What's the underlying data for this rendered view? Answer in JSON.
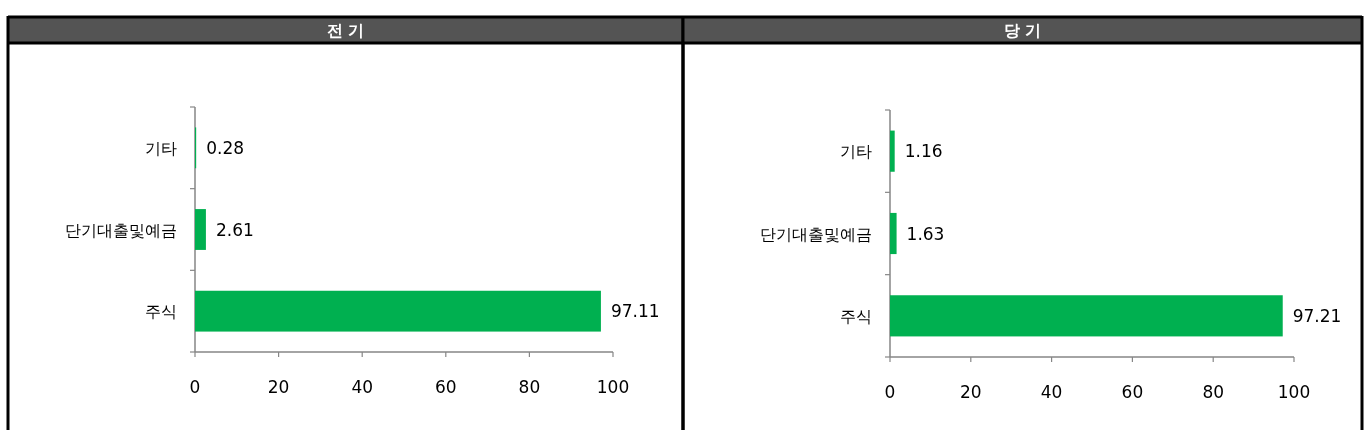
{
  "chart_data": [
    {
      "type": "bar",
      "orientation": "horizontal",
      "title": "전 기",
      "categories": [
        "기타",
        "단기대출및예금",
        "주식"
      ],
      "values": [
        0.28,
        2.61,
        97.11
      ],
      "color": "#00b050",
      "xlim": [
        0,
        100
      ],
      "xticks": [
        0,
        20,
        40,
        60,
        80,
        100
      ],
      "data_labels": true
    },
    {
      "type": "bar",
      "orientation": "horizontal",
      "title": "당 기",
      "categories": [
        "기타",
        "단기대출및예금",
        "주식"
      ],
      "values": [
        1.16,
        1.63,
        97.21
      ],
      "color": "#00b050",
      "xlim": [
        0,
        100
      ],
      "xticks": [
        0,
        20,
        40,
        60,
        80,
        100
      ],
      "data_labels": true
    }
  ]
}
